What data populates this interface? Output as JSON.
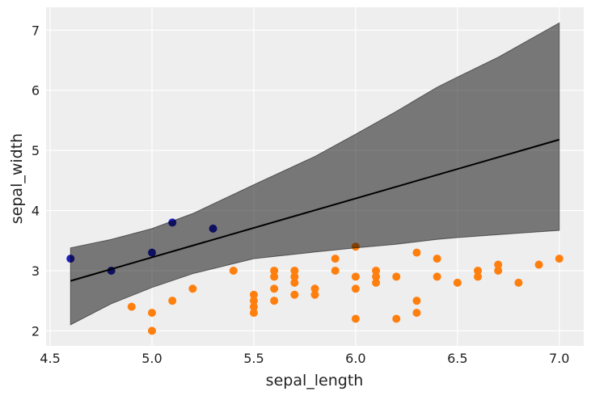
{
  "chart_data": {
    "type": "scatter",
    "xlabel": "sepal_length",
    "ylabel": "sepal_width",
    "xlim": [
      4.48,
      7.12
    ],
    "ylim": [
      1.75,
      7.38
    ],
    "xticks": [
      "4.5",
      "5.0",
      "5.5",
      "6.0",
      "6.5",
      "7.0"
    ],
    "yticks": [
      "2",
      "3",
      "4",
      "5",
      "6",
      "7"
    ],
    "grid": true,
    "background": "#eeeeee",
    "series": [
      {
        "color": "#1f1fbf",
        "points": [
          [
            4.6,
            3.2
          ],
          [
            4.8,
            3.0
          ],
          [
            5.0,
            3.3
          ],
          [
            5.1,
            3.8
          ],
          [
            5.3,
            3.7
          ]
        ]
      },
      {
        "color": "#ff7f0e",
        "points": [
          [
            4.9,
            2.4
          ],
          [
            5.0,
            2.3
          ],
          [
            5.0,
            2.0
          ],
          [
            5.1,
            2.5
          ],
          [
            5.2,
            2.7
          ],
          [
            5.4,
            3.0
          ],
          [
            5.5,
            2.6
          ],
          [
            5.5,
            2.5
          ],
          [
            5.5,
            2.4
          ],
          [
            5.5,
            2.3
          ],
          [
            5.6,
            3.0
          ],
          [
            5.6,
            2.9
          ],
          [
            5.6,
            2.7
          ],
          [
            5.6,
            2.5
          ],
          [
            5.7,
            3.0
          ],
          [
            5.7,
            2.9
          ],
          [
            5.7,
            2.8
          ],
          [
            5.7,
            2.6
          ],
          [
            5.8,
            2.7
          ],
          [
            5.8,
            2.6
          ],
          [
            5.9,
            3.2
          ],
          [
            5.9,
            3.0
          ],
          [
            6.0,
            3.4
          ],
          [
            6.0,
            2.9
          ],
          [
            6.0,
            2.7
          ],
          [
            6.0,
            2.2
          ],
          [
            6.1,
            3.0
          ],
          [
            6.1,
            2.9
          ],
          [
            6.1,
            2.8
          ],
          [
            6.2,
            2.9
          ],
          [
            6.2,
            2.2
          ],
          [
            6.3,
            3.3
          ],
          [
            6.3,
            2.5
          ],
          [
            6.3,
            2.3
          ],
          [
            6.4,
            3.2
          ],
          [
            6.4,
            2.9
          ],
          [
            6.5,
            2.8
          ],
          [
            6.6,
            3.0
          ],
          [
            6.6,
            2.9
          ],
          [
            6.7,
            3.1
          ],
          [
            6.7,
            3.0
          ],
          [
            6.8,
            2.8
          ],
          [
            6.9,
            3.1
          ],
          [
            7.0,
            3.2
          ]
        ]
      }
    ],
    "regression_line": {
      "color": "#000000",
      "x": [
        4.6,
        7.0
      ],
      "y": [
        2.83,
        5.18
      ]
    },
    "band": {
      "color": "#000000",
      "opacity": 0.5,
      "x": [
        4.6,
        4.8,
        5.0,
        5.2,
        5.5,
        5.8,
        6.0,
        6.2,
        6.4,
        6.5,
        6.7,
        7.0
      ],
      "upper": [
        3.38,
        3.52,
        3.7,
        3.95,
        4.43,
        4.9,
        5.27,
        5.65,
        6.05,
        6.22,
        6.55,
        7.12
      ],
      "lower": [
        2.1,
        2.45,
        2.72,
        2.95,
        3.2,
        3.31,
        3.38,
        3.44,
        3.52,
        3.55,
        3.6,
        3.67
      ]
    }
  }
}
